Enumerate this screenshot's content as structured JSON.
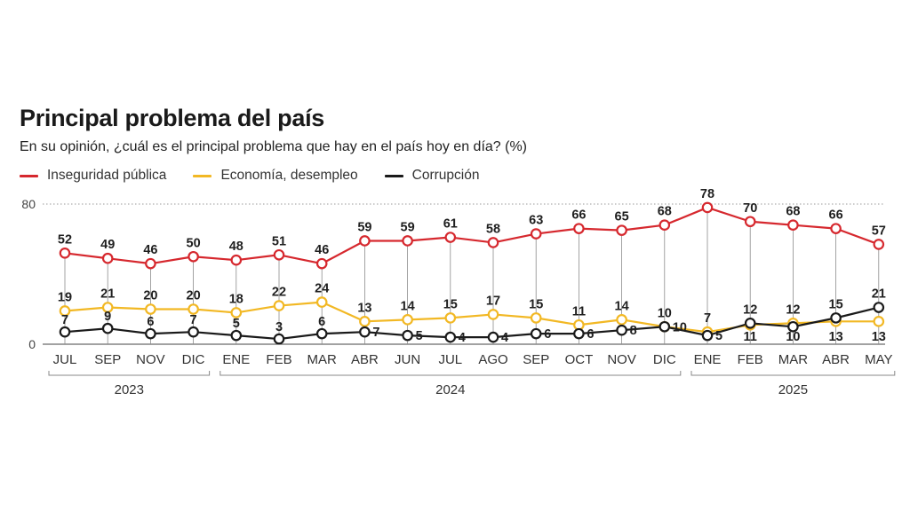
{
  "title": "Principal problema del país",
  "subtitle": "En su opinión, ¿cuál es el principal problema que hay en el país hoy en día?  (%)",
  "chart_data": {
    "type": "line",
    "title": "Principal problema del país",
    "subtitle": "En su opinión, ¿cuál es el principal problema que hay en el país hoy en día?  (%)",
    "categories": [
      "JUL",
      "SEP",
      "NOV",
      "DIC",
      "ENE",
      "FEB",
      "MAR",
      "ABR",
      "JUN",
      "JUL",
      "AGO",
      "SEP",
      "OCT",
      "NOV",
      "DIC",
      "ENE",
      "FEB",
      "MAR",
      "ABR",
      "MAY"
    ],
    "years": [
      {
        "label": "2023",
        "start": 0,
        "end": 3
      },
      {
        "label": "2024",
        "start": 4,
        "end": 14
      },
      {
        "label": "2025",
        "start": 15,
        "end": 19
      }
    ],
    "ylim": [
      0,
      80
    ],
    "yticks": [
      0,
      80
    ],
    "grid": false,
    "legend_position": "top-left",
    "series": [
      {
        "name": "Inseguridad pública",
        "color": "#d6282e",
        "values": [
          52,
          49,
          46,
          50,
          48,
          51,
          46,
          59,
          59,
          61,
          58,
          63,
          66,
          65,
          68,
          78,
          70,
          68,
          66,
          57
        ]
      },
      {
        "name": "Economía, desempleo",
        "color": "#f2b824",
        "values": [
          19,
          21,
          20,
          20,
          18,
          22,
          24,
          13,
          14,
          15,
          17,
          15,
          11,
          14,
          10,
          7,
          11,
          12,
          13,
          13
        ]
      },
      {
        "name": "Corrupción",
        "color": "#1a1a1a",
        "values": [
          7,
          9,
          6,
          7,
          5,
          3,
          6,
          7,
          5,
          4,
          4,
          6,
          6,
          8,
          10,
          5,
          12,
          10,
          15,
          21
        ]
      }
    ]
  }
}
